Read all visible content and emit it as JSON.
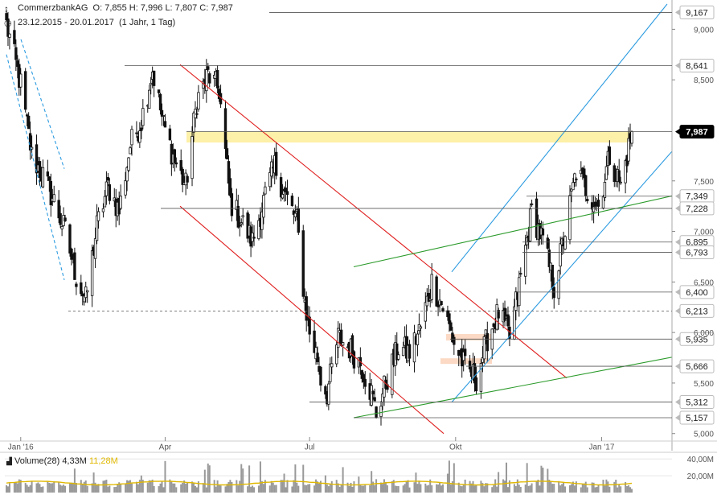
{
  "header": {
    "symbol": "CommerzbankAG",
    "ohlc": "O: 7,855  H: 7,996  L: 7,807  C: 7,987",
    "range": "23.12.2015 - 20.01.2017",
    "period": "(1 Jahr, 1 Tag)"
  },
  "volume_header": {
    "label": "Volume(28)",
    "value": "4,33M",
    "average": "11,28M",
    "average_color": "#e0b800"
  },
  "colors": {
    "candle_up": "#ffffff",
    "candle_down": "#111111",
    "support_lines": "#2b9be0",
    "resistance_channel": "#e02020",
    "trend_green": "#2a9a2a",
    "highlight_zone": "#fdf0a8",
    "highlight_small": "#fbd9c4",
    "volume_bars": "#999999",
    "volume_ma": "#e0b800"
  },
  "chart_data": {
    "type": "candlestick",
    "title": "CommerzbankAG",
    "x_range": [
      "2015-12-23",
      "2017-01-20"
    ],
    "x_tick_labels": [
      "Jan '16",
      "Apr",
      "Jul",
      "Okt",
      "Jan '17"
    ],
    "y_tick_labels": [
      "9,000",
      "8,500",
      "7,500",
      "7,000",
      "6,500",
      "6,000",
      "5,500",
      "5,000"
    ],
    "ylim": [
      4.95,
      9.25
    ],
    "grid": false,
    "levels": [
      "9,167",
      "8,641",
      "7,987",
      "7,349",
      "7,228",
      "6,895",
      "6,793",
      "6,400",
      "6,213",
      "5,935",
      "5,666",
      "5,312",
      "5,157"
    ],
    "last_close": "7,987",
    "anchors": [
      [
        "2015-12-23",
        9.05
      ],
      [
        "2016-01-01",
        8.45
      ],
      [
        "2016-01-08",
        7.75
      ],
      [
        "2016-01-15",
        7.55
      ],
      [
        "2016-01-22",
        7.3
      ],
      [
        "2016-01-29",
        7.0
      ],
      [
        "2016-02-05",
        6.55
      ],
      [
        "2016-02-11",
        6.32
      ],
      [
        "2016-02-18",
        7.05
      ],
      [
        "2016-02-25",
        7.45
      ],
      [
        "2016-03-03",
        7.2
      ],
      [
        "2016-03-10",
        7.85
      ],
      [
        "2016-03-17",
        8.1
      ],
      [
        "2016-03-24",
        8.6
      ],
      [
        "2016-03-31",
        8.05
      ],
      [
        "2016-04-07",
        7.7
      ],
      [
        "2016-04-14",
        7.45
      ],
      [
        "2016-04-21",
        8.3
      ],
      [
        "2016-04-28",
        8.55
      ],
      [
        "2016-05-05",
        8.4
      ],
      [
        "2016-05-12",
        7.3
      ],
      [
        "2016-05-19",
        7.1
      ],
      [
        "2016-05-26",
        6.9
      ],
      [
        "2016-06-02",
        7.3
      ],
      [
        "2016-06-09",
        7.65
      ],
      [
        "2016-06-16",
        7.35
      ],
      [
        "2016-06-23",
        7.1
      ],
      [
        "2016-06-28",
        6.3
      ],
      [
        "2016-07-01",
        6.0
      ],
      [
        "2016-07-06",
        5.75
      ],
      [
        "2016-07-08",
        5.55
      ],
      [
        "2016-07-12",
        5.4
      ],
      [
        "2016-07-19",
        5.95
      ],
      [
        "2016-07-26",
        5.85
      ],
      [
        "2016-08-02",
        5.7
      ],
      [
        "2016-08-09",
        5.4
      ],
      [
        "2016-08-12",
        5.2
      ],
      [
        "2016-08-19",
        5.55
      ],
      [
        "2016-08-26",
        5.85
      ],
      [
        "2016-09-02",
        5.8
      ],
      [
        "2016-09-09",
        6.05
      ],
      [
        "2016-09-16",
        6.5
      ],
      [
        "2016-09-23",
        6.25
      ],
      [
        "2016-09-30",
        5.9
      ],
      [
        "2016-10-07",
        5.65
      ],
      [
        "2016-10-14",
        5.55
      ],
      [
        "2016-10-21",
        5.95
      ],
      [
        "2016-10-28",
        6.2
      ],
      [
        "2016-11-04",
        5.95
      ],
      [
        "2016-11-11",
        6.55
      ],
      [
        "2016-11-18",
        7.2
      ],
      [
        "2016-11-25",
        6.9
      ],
      [
        "2016-12-02",
        6.45
      ],
      [
        "2016-12-09",
        7.0
      ],
      [
        "2016-12-16",
        7.6
      ],
      [
        "2016-12-23",
        7.4
      ],
      [
        "2016-12-30",
        7.25
      ],
      [
        "2017-01-06",
        7.75
      ],
      [
        "2017-01-13",
        7.45
      ],
      [
        "2017-01-20",
        7.987
      ]
    ]
  },
  "volume_data": {
    "y_tick_labels": [
      "40,00M",
      "20,00M"
    ],
    "ylim": [
      0,
      45
    ],
    "average_m": 11.28,
    "last_m": 4.33
  }
}
